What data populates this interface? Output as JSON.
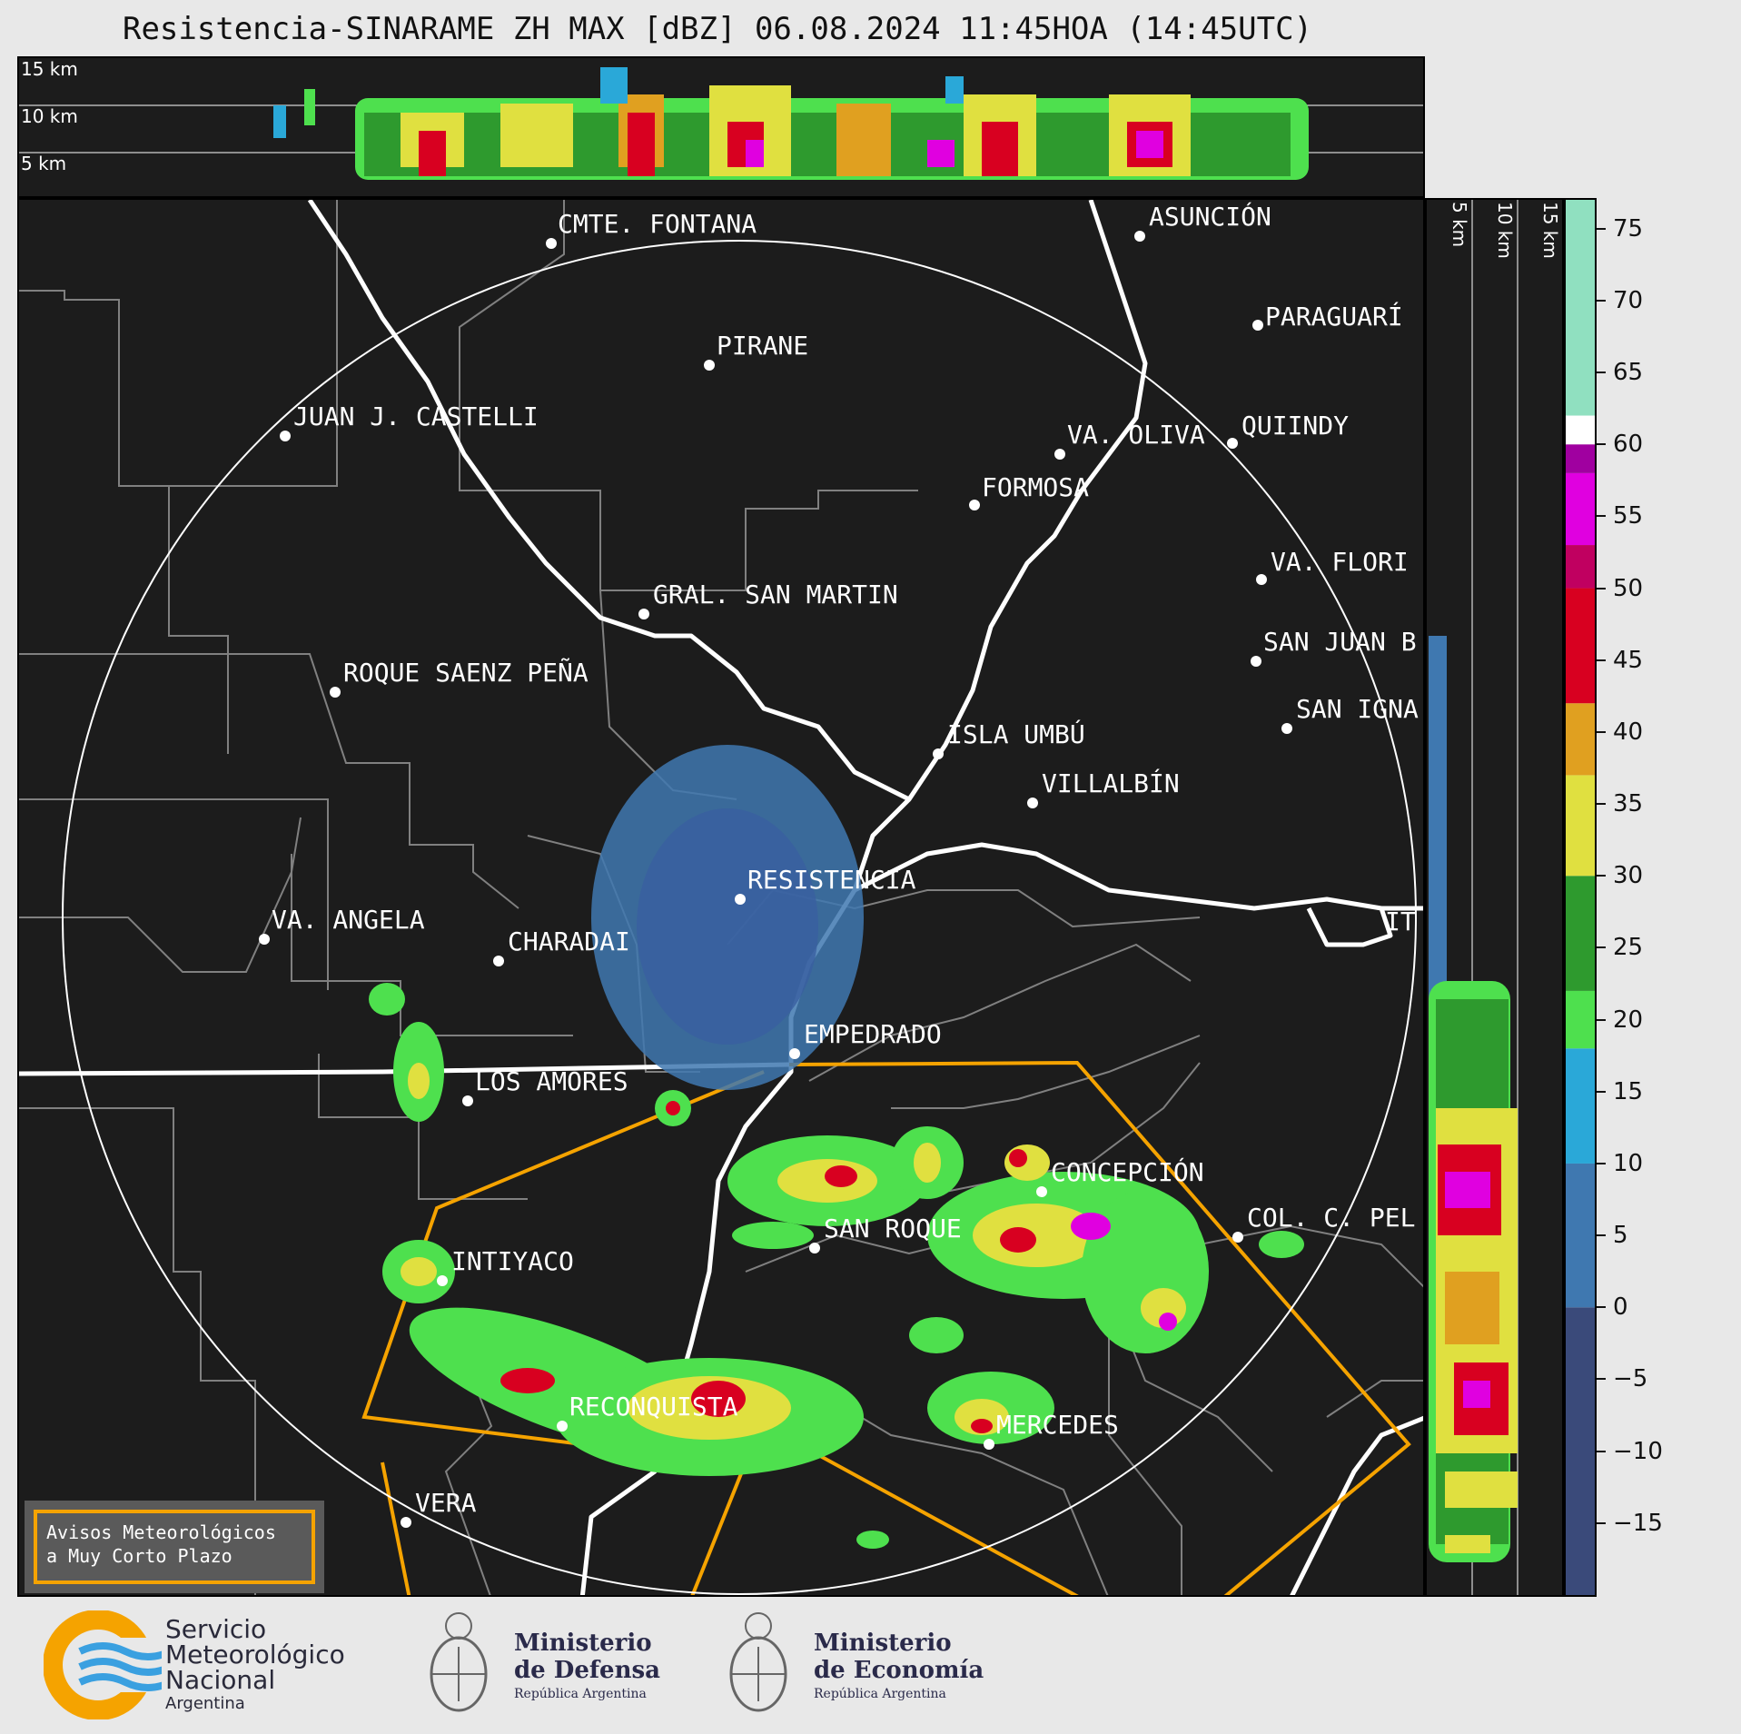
{
  "title": "Resistencia-SINARAME ZH MAX [dBZ] 06.08.2024 11:45HOA (14:45UTC)",
  "top_panel": {
    "height_labels": [
      "15 km",
      "10 km",
      "5 km"
    ]
  },
  "side_panel": {
    "height_labels": [
      "5 km",
      "10 km",
      "15 km"
    ]
  },
  "colorbar": {
    "unit": "dBZ",
    "range": [
      -20,
      77
    ],
    "tick_labels": [
      "75",
      "70",
      "65",
      "60",
      "55",
      "50",
      "45",
      "40",
      "35",
      "30",
      "25",
      "20",
      "15",
      "10",
      "5",
      "0",
      "−5",
      "−10",
      "−15"
    ],
    "bands": [
      {
        "from": -20,
        "to": 0,
        "color": "#3a4a7a"
      },
      {
        "from": 0,
        "to": 10,
        "color": "#3f78b0"
      },
      {
        "from": 10,
        "to": 18,
        "color": "#2aa8d8"
      },
      {
        "from": 18,
        "to": 22,
        "color": "#4ee04e"
      },
      {
        "from": 22,
        "to": 30,
        "color": "#2e9a2e"
      },
      {
        "from": 30,
        "to": 37,
        "color": "#e0e040"
      },
      {
        "from": 37,
        "to": 42,
        "color": "#e0a020"
      },
      {
        "from": 42,
        "to": 50,
        "color": "#d80020"
      },
      {
        "from": 50,
        "to": 53,
        "color": "#c00060"
      },
      {
        "from": 53,
        "to": 58,
        "color": "#e000e0"
      },
      {
        "from": 58,
        "to": 60,
        "color": "#a000a0"
      },
      {
        "from": 60,
        "to": 62,
        "color": "#ffffff"
      },
      {
        "from": 62,
        "to": 77,
        "color": "#90e0c0"
      }
    ]
  },
  "cities": [
    {
      "name": "CMTE. FONTANA"
    },
    {
      "name": "ASUNCIÓN"
    },
    {
      "name": "PARAGUARÍ"
    },
    {
      "name": "PIRANE"
    },
    {
      "name": "JUAN J. CASTELLI"
    },
    {
      "name": "VA. OLIVA"
    },
    {
      "name": "QUIINDY"
    },
    {
      "name": "FORMOSA"
    },
    {
      "name": "VA. FLORI"
    },
    {
      "name": "GRAL. SAN MARTIN"
    },
    {
      "name": "SAN JUAN B"
    },
    {
      "name": "ROQUE SAENZ PEÑA"
    },
    {
      "name": "SAN IGNA"
    },
    {
      "name": "ISLA UMBÚ"
    },
    {
      "name": "VILLALBÍN"
    },
    {
      "name": "RESISTENCIA"
    },
    {
      "name": "VA. ANGELA"
    },
    {
      "name": "CHARADAI"
    },
    {
      "name": "IT"
    },
    {
      "name": "EMPEDRADO"
    },
    {
      "name": "LOS AMORES"
    },
    {
      "name": "CONCEPCIÓN"
    },
    {
      "name": "SAN ROQUE"
    },
    {
      "name": "COL. C. PEL"
    },
    {
      "name": "INTIYACO"
    },
    {
      "name": "RECONQUISTA"
    },
    {
      "name": "MERCEDES"
    },
    {
      "name": "VERA"
    }
  ],
  "aviso": {
    "line1": "Avisos Meteorológicos",
    "line2": "a Muy Corto Plazo"
  },
  "footer": {
    "smn": {
      "line1": "Servicio",
      "line2": "Meteorológico",
      "line3": "Nacional",
      "line4": "Argentina"
    },
    "defensa": {
      "line1": "Ministerio",
      "line2": "de Defensa",
      "line3": "República Argentina"
    },
    "economia": {
      "line1": "Ministerio",
      "line2": "de Economía",
      "line3": "República Argentina"
    }
  }
}
